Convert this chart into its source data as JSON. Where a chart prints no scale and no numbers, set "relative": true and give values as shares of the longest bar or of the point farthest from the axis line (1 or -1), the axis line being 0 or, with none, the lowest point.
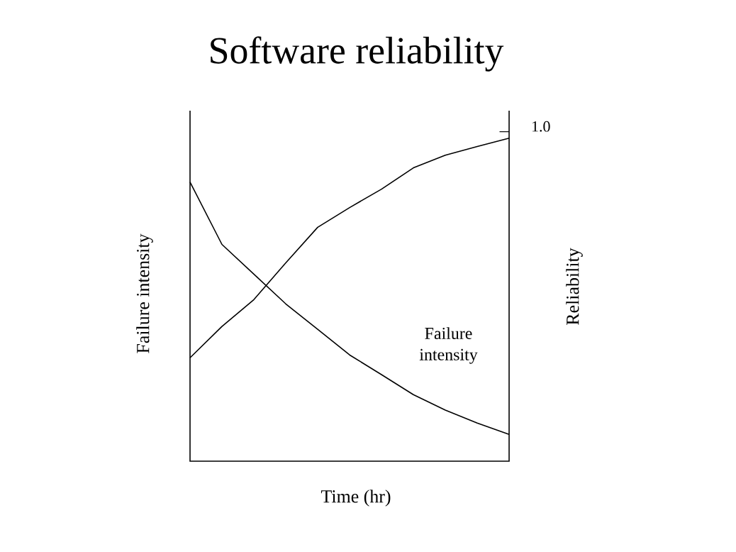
{
  "chart_data": {
    "type": "line",
    "title": "Software reliability",
    "xlabel": "Time (hr)",
    "ylabel": "Failure intensity",
    "y2label": "Reliability",
    "relative": true,
    "annotations": [
      "1.0"
    ],
    "categories": [
      null,
      null,
      null,
      null,
      null,
      null,
      null,
      null,
      null,
      null,
      null
    ],
    "series": [
      {
        "name": "Failure intensity",
        "color": "#000000",
        "values": [
          0.864,
          0.671,
          0.579,
          0.487,
          0.408,
          0.329,
          0.268,
          0.206,
          0.158,
          0.118,
          0.083
        ]
      },
      {
        "color": "#000000",
        "values": [
          0.32,
          0.417,
          0.5,
          0.614,
          0.724,
          0.785,
          0.842,
          0.908,
          0.947,
          0.974,
          1.0
        ]
      }
    ]
  }
}
